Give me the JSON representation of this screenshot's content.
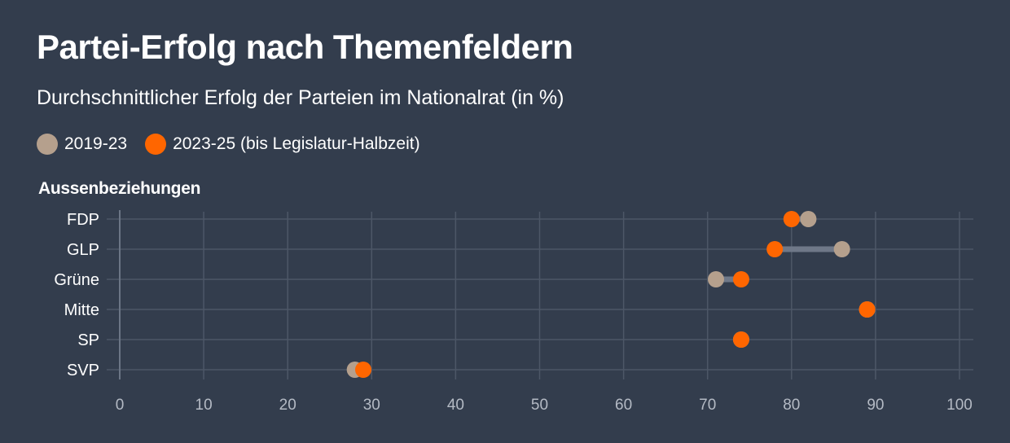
{
  "chart_data": {
    "type": "dumbbell",
    "title": "Partei-Erfolg nach Themenfeldern",
    "subtitle": "Durchschnittlicher Erfolg der Parteien im Nationalrat (in %)",
    "section": "Aussenbeziehungen",
    "xlim": [
      0,
      100
    ],
    "xticks": [
      "0",
      "10",
      "20",
      "30",
      "40",
      "50",
      "60",
      "70",
      "80",
      "90",
      "100"
    ],
    "grid": true,
    "legend_position": "top-left",
    "categories": [
      "FDP",
      "GLP",
      "Grüne",
      "Mitte",
      "SP",
      "SVP"
    ],
    "series": [
      {
        "name": "2019-23",
        "color": "#b5a08d",
        "values": [
          82,
          86,
          71,
          89,
          74,
          28
        ]
      },
      {
        "name": "2023-25 (bis Legislatur-Halbzeit)",
        "color": "#ff6600",
        "values": [
          80,
          78,
          74,
          89,
          74,
          29
        ]
      }
    ]
  },
  "colors": {
    "background": "#333d4d",
    "grid": "#4d5767",
    "connector": "#6f7888",
    "axis_label": "#b4bac4"
  }
}
